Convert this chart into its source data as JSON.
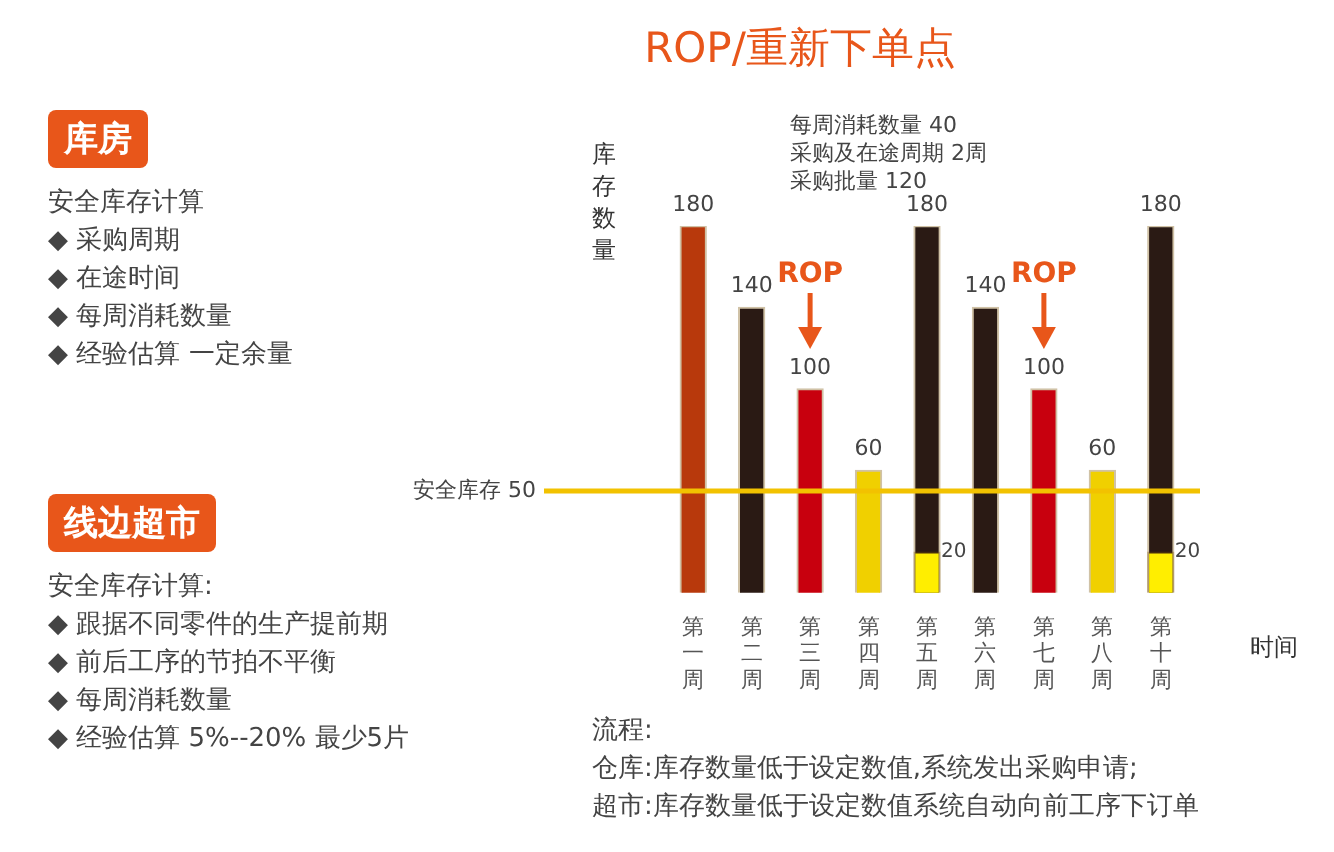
{
  "chart_data": {
    "type": "bar",
    "title": "ROP/重新下单点",
    "ylabel": "库存数量",
    "xlabel": "时间",
    "categories": [
      "第一周",
      "第二周",
      "第三周",
      "第四周",
      "第五周",
      "第六周",
      "第七周",
      "第八周",
      "第十周"
    ],
    "data_labels": true,
    "legend": false,
    "grid": false,
    "series": [
      {
        "colors": [
          "#b8390c",
          "#2a1a14",
          "#c8000e",
          "#f0d000",
          "#2a1a14",
          "#2a1a14",
          "#c8000e",
          "#f0d000",
          "#2a1a14"
        ],
        "values": [
          180,
          140,
          100,
          60,
          180,
          140,
          100,
          60,
          180
        ]
      },
      {
        "color": "#ffee00",
        "values": [
          null,
          null,
          null,
          null,
          20,
          null,
          null,
          null,
          20
        ]
      }
    ],
    "ref_lines": [
      {
        "axis": "y",
        "value": 50,
        "label": "安全库存 50",
        "color": "#f2c200"
      }
    ],
    "annotations": [
      "每周消耗数量 40",
      "采购及在途周期 2周",
      "采购批量 120",
      "库房",
      "安全库存计算",
      "◆ 采购周期",
      "◆ 在途时间",
      "◆ 每周消耗数量",
      "◆ 经验估算 一定余量",
      "线边超市",
      "安全库存计算:",
      "◆ 跟据不同零件的生产提前期",
      "◆ 前后工序的节拍不平衡",
      "◆ 每周消耗数量",
      "◆ 经验估算 5%--20% 最少5片",
      "流程:",
      "仓库:库存数量低于设定数值,系统发出采购申请;",
      "超市:库存数量低于设定数值系统自动向前工序下订单",
      "ROP",
      "ROP"
    ]
  }
}
